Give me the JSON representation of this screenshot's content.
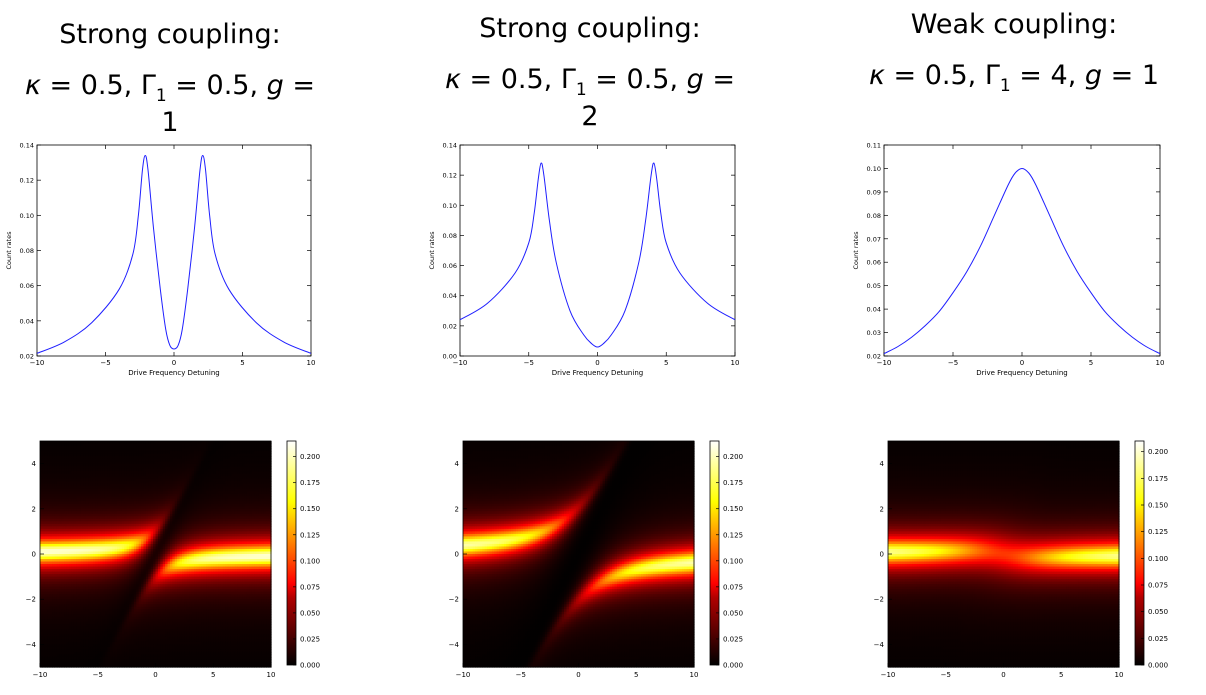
{
  "panels": [
    {
      "title_line1": "Strong coupling:",
      "params": {
        "kappa": "0.5",
        "gamma1": "0.5",
        "g": "1"
      },
      "symbols": {
        "kappa": "κ",
        "gamma": "Γ",
        "gamma_sub": "1",
        "g": "g",
        "eq": " = ",
        "sep": ", "
      },
      "line_chart": {
        "type": "line",
        "xlabel": "Drive Frequency Detuning",
        "ylabel": "Count rates",
        "xlim": [
          -10,
          10
        ],
        "ylim": [
          0.02,
          0.14
        ],
        "xticks": [
          -10,
          -5,
          0,
          5,
          10
        ],
        "yticks": [
          0.02,
          0.04,
          0.06,
          0.08,
          0.1,
          0.12,
          0.14
        ],
        "ytick_labels": [
          "0.02",
          "0.04",
          "0.06",
          "0.08",
          "0.10",
          "0.12",
          "0.14"
        ],
        "color": "#1f1fff",
        "points": [
          [
            -10,
            0.0215
          ],
          [
            -8,
            0.028
          ],
          [
            -6,
            0.039
          ],
          [
            -4,
            0.058
          ],
          [
            -3,
            0.078
          ],
          [
            -2.6,
            0.1
          ],
          [
            -2.3,
            0.126
          ],
          [
            -2.1,
            0.134
          ],
          [
            -1.9,
            0.126
          ],
          [
            -1.5,
            0.093
          ],
          [
            -1,
            0.058
          ],
          [
            -0.6,
            0.035
          ],
          [
            -0.3,
            0.026
          ],
          [
            0,
            0.024
          ],
          [
            0.3,
            0.026
          ],
          [
            0.6,
            0.035
          ],
          [
            1,
            0.058
          ],
          [
            1.5,
            0.093
          ],
          [
            1.9,
            0.126
          ],
          [
            2.1,
            0.134
          ],
          [
            2.3,
            0.126
          ],
          [
            2.6,
            0.1
          ],
          [
            3,
            0.078
          ],
          [
            4,
            0.058
          ],
          [
            6,
            0.039
          ],
          [
            8,
            0.028
          ],
          [
            10,
            0.0215
          ]
        ]
      },
      "heatmap": {
        "type": "heatmap",
        "xlim": [
          -10,
          10
        ],
        "ylim": [
          -5,
          5
        ],
        "xticks": [
          -10,
          -5,
          0,
          5,
          10
        ],
        "yticks": [
          -4,
          -2,
          0,
          2,
          4
        ],
        "colorbar": {
          "min": 0,
          "max": 0.215,
          "ticks": [
            "0.000",
            "0.025",
            "0.050",
            "0.075",
            "0.100",
            "0.125",
            "0.150",
            "0.175",
            "0.200"
          ]
        },
        "model": {
          "kappa": 0.5,
          "gamma1": 0.5,
          "g": 1
        }
      }
    },
    {
      "title_line1": "Strong coupling:",
      "params": {
        "kappa": "0.5",
        "gamma1": "0.5",
        "g": "2"
      },
      "symbols": {
        "kappa": "κ",
        "gamma": "Γ",
        "gamma_sub": "1",
        "g": "g",
        "eq": " = ",
        "sep": ", "
      },
      "line_chart": {
        "type": "line",
        "xlabel": "Drive Frequency Detuning",
        "ylabel": "Count rates",
        "xlim": [
          -10,
          10
        ],
        "ylim": [
          0.0,
          0.14
        ],
        "xticks": [
          -10,
          -5,
          0,
          5,
          10
        ],
        "yticks": [
          0.0,
          0.02,
          0.04,
          0.06,
          0.08,
          0.1,
          0.12,
          0.14
        ],
        "ytick_labels": [
          "0.00",
          "0.02",
          "0.04",
          "0.06",
          "0.08",
          "0.10",
          "0.12",
          "0.14"
        ],
        "color": "#1f1fff",
        "points": [
          [
            -10,
            0.024
          ],
          [
            -8,
            0.035
          ],
          [
            -6,
            0.055
          ],
          [
            -5,
            0.075
          ],
          [
            -4.6,
            0.095
          ],
          [
            -4.3,
            0.118
          ],
          [
            -4.1,
            0.128
          ],
          [
            -3.9,
            0.12
          ],
          [
            -3.5,
            0.09
          ],
          [
            -3,
            0.062
          ],
          [
            -2,
            0.03
          ],
          [
            -1,
            0.014
          ],
          [
            -0.4,
            0.008
          ],
          [
            0,
            0.006
          ],
          [
            0.4,
            0.008
          ],
          [
            1,
            0.014
          ],
          [
            2,
            0.03
          ],
          [
            3,
            0.062
          ],
          [
            3.5,
            0.09
          ],
          [
            3.9,
            0.12
          ],
          [
            4.1,
            0.128
          ],
          [
            4.3,
            0.118
          ],
          [
            4.6,
            0.095
          ],
          [
            5,
            0.075
          ],
          [
            6,
            0.055
          ],
          [
            8,
            0.035
          ],
          [
            10,
            0.024
          ]
        ]
      },
      "heatmap": {
        "type": "heatmap",
        "xlim": [
          -10,
          10
        ],
        "ylim": [
          -5,
          5
        ],
        "xticks": [
          -10,
          -5,
          0,
          5,
          10
        ],
        "yticks": [
          -4,
          -2,
          0,
          2,
          4
        ],
        "colorbar": {
          "min": 0,
          "max": 0.215,
          "ticks": [
            "0.000",
            "0.025",
            "0.050",
            "0.075",
            "0.100",
            "0.125",
            "0.150",
            "0.175",
            "0.200"
          ]
        },
        "model": {
          "kappa": 0.5,
          "gamma1": 0.5,
          "g": 2
        }
      }
    },
    {
      "title_line1": "Weak coupling:",
      "params": {
        "kappa": "0.5",
        "gamma1": "4",
        "g": "1"
      },
      "symbols": {
        "kappa": "κ",
        "gamma": "Γ",
        "gamma_sub": "1",
        "g": "g",
        "eq": " = ",
        "sep": ", "
      },
      "line_chart": {
        "type": "line",
        "xlabel": "Drive Frequency Detuning",
        "ylabel": "Count rates",
        "xlim": [
          -10,
          10
        ],
        "ylim": [
          0.02,
          0.11
        ],
        "xticks": [
          -10,
          -5,
          0,
          5,
          10
        ],
        "yticks": [
          0.02,
          0.03,
          0.04,
          0.05,
          0.06,
          0.07,
          0.08,
          0.09,
          0.1,
          0.11
        ],
        "ytick_labels": [
          "0.02",
          "0.03",
          "0.04",
          "0.05",
          "0.06",
          "0.07",
          "0.08",
          "0.09",
          "0.10",
          "0.11"
        ],
        "color": "#1f1fff",
        "points": [
          [
            -10,
            0.021
          ],
          [
            -9,
            0.024
          ],
          [
            -8,
            0.028
          ],
          [
            -7,
            0.033
          ],
          [
            -6,
            0.039
          ],
          [
            -5,
            0.047
          ],
          [
            -4,
            0.056
          ],
          [
            -3,
            0.067
          ],
          [
            -2,
            0.08
          ],
          [
            -1,
            0.093
          ],
          [
            -0.5,
            0.098
          ],
          [
            0,
            0.1
          ],
          [
            0.5,
            0.098
          ],
          [
            1,
            0.093
          ],
          [
            2,
            0.08
          ],
          [
            3,
            0.067
          ],
          [
            4,
            0.056
          ],
          [
            5,
            0.047
          ],
          [
            6,
            0.039
          ],
          [
            7,
            0.033
          ],
          [
            8,
            0.028
          ],
          [
            9,
            0.024
          ],
          [
            10,
            0.021
          ]
        ]
      },
      "heatmap": {
        "type": "heatmap",
        "xlim": [
          -10,
          10
        ],
        "ylim": [
          -5,
          5
        ],
        "xticks": [
          -10,
          -5,
          0,
          5,
          10
        ],
        "yticks": [
          -4,
          -2,
          0,
          2,
          4
        ],
        "colorbar": {
          "min": 0,
          "max": 0.21,
          "ticks": [
            "0.000",
            "0.025",
            "0.050",
            "0.075",
            "0.100",
            "0.125",
            "0.150",
            "0.175",
            "0.200"
          ]
        },
        "model": {
          "kappa": 0.5,
          "gamma1": 4,
          "g": 1
        }
      }
    }
  ]
}
